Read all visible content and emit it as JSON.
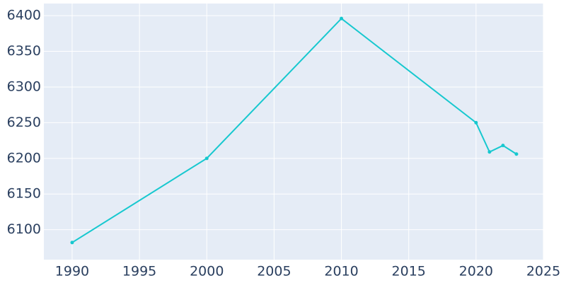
{
  "chart_data": {
    "type": "line",
    "x": [
      1990,
      2000,
      2010,
      2020,
      2021,
      2022,
      2023
    ],
    "series": [
      {
        "color": "#17c8cf",
        "values": [
          6082,
          6200,
          6396,
          6250,
          6209,
          6218,
          6206
        ]
      }
    ],
    "xlim": [
      1987.9,
      2025
    ],
    "xticks": [
      1990,
      1995,
      2000,
      2005,
      2010,
      2015,
      2020,
      2025
    ],
    "ylim": [
      6058,
      6417
    ],
    "yticks": [
      6100,
      6150,
      6200,
      6250,
      6300,
      6350,
      6400
    ],
    "grid": true,
    "background": "#e5ecf6"
  }
}
